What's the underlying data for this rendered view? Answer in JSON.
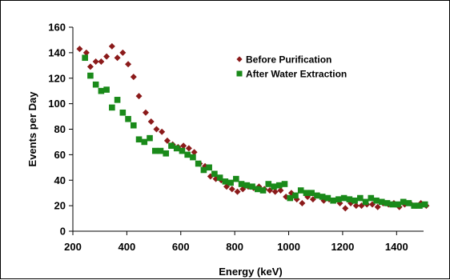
{
  "chart_data": {
    "type": "scatter",
    "title": "",
    "xlabel": "Energy (keV)",
    "ylabel": "Events per Day",
    "xlim": [
      200,
      1500
    ],
    "ylim": [
      0,
      160
    ],
    "x_ticks": [
      200,
      400,
      600,
      800,
      1000,
      1200,
      1400
    ],
    "y_ticks": [
      0,
      20,
      40,
      60,
      80,
      100,
      120,
      140,
      160
    ],
    "grid": false,
    "legend_position": "top-right",
    "series": [
      {
        "name": "Before Purification",
        "color": "#8B1A1A",
        "marker": "diamond",
        "points": [
          [
            225,
            143
          ],
          [
            250,
            140
          ],
          [
            265,
            129
          ],
          [
            285,
            133
          ],
          [
            305,
            133
          ],
          [
            325,
            137
          ],
          [
            345,
            145
          ],
          [
            365,
            136
          ],
          [
            385,
            140
          ],
          [
            405,
            131
          ],
          [
            425,
            121
          ],
          [
            445,
            106
          ],
          [
            470,
            93
          ],
          [
            490,
            86
          ],
          [
            510,
            80
          ],
          [
            530,
            78
          ],
          [
            550,
            71
          ],
          [
            570,
            68
          ],
          [
            590,
            66
          ],
          [
            610,
            67
          ],
          [
            630,
            65
          ],
          [
            650,
            62
          ],
          [
            670,
            53
          ],
          [
            690,
            51
          ],
          [
            710,
            43
          ],
          [
            730,
            41
          ],
          [
            750,
            40
          ],
          [
            770,
            35
          ],
          [
            790,
            33
          ],
          [
            810,
            31
          ],
          [
            830,
            33
          ],
          [
            850,
            35
          ],
          [
            870,
            34
          ],
          [
            890,
            35
          ],
          [
            910,
            33
          ],
          [
            930,
            32
          ],
          [
            950,
            31
          ],
          [
            970,
            32
          ],
          [
            990,
            27
          ],
          [
            1010,
            30
          ],
          [
            1030,
            25
          ],
          [
            1050,
            22
          ],
          [
            1070,
            27
          ],
          [
            1090,
            25
          ],
          [
            1110,
            28
          ],
          [
            1130,
            24
          ],
          [
            1150,
            25
          ],
          [
            1170,
            24
          ],
          [
            1190,
            22
          ],
          [
            1210,
            18
          ],
          [
            1230,
            22
          ],
          [
            1250,
            20
          ],
          [
            1270,
            20
          ],
          [
            1290,
            21
          ],
          [
            1310,
            21
          ],
          [
            1330,
            19
          ],
          [
            1350,
            22
          ],
          [
            1370,
            21
          ],
          [
            1390,
            22
          ],
          [
            1410,
            19
          ],
          [
            1430,
            21
          ],
          [
            1450,
            22
          ],
          [
            1470,
            20
          ],
          [
            1490,
            22
          ],
          [
            1510,
            20
          ]
        ]
      },
      {
        "name": "After Water Extraction",
        "color": "#1A8A1A",
        "marker": "square",
        "points": [
          [
            245,
            136
          ],
          [
            265,
            122
          ],
          [
            285,
            115
          ],
          [
            305,
            110
          ],
          [
            325,
            111
          ],
          [
            345,
            97
          ],
          [
            365,
            103
          ],
          [
            385,
            93
          ],
          [
            405,
            88
          ],
          [
            425,
            83
          ],
          [
            445,
            72
          ],
          [
            465,
            70
          ],
          [
            485,
            73
          ],
          [
            505,
            63
          ],
          [
            525,
            63
          ],
          [
            545,
            61
          ],
          [
            565,
            67
          ],
          [
            585,
            65
          ],
          [
            605,
            63
          ],
          [
            625,
            60
          ],
          [
            645,
            58
          ],
          [
            665,
            53
          ],
          [
            685,
            48
          ],
          [
            705,
            50
          ],
          [
            725,
            45
          ],
          [
            745,
            42
          ],
          [
            765,
            39
          ],
          [
            785,
            38
          ],
          [
            805,
            41
          ],
          [
            825,
            37
          ],
          [
            845,
            36
          ],
          [
            865,
            35
          ],
          [
            885,
            33
          ],
          [
            905,
            32
          ],
          [
            925,
            37
          ],
          [
            945,
            35
          ],
          [
            965,
            36
          ],
          [
            985,
            37
          ],
          [
            1005,
            26
          ],
          [
            1025,
            28
          ],
          [
            1045,
            32
          ],
          [
            1065,
            30
          ],
          [
            1085,
            30
          ],
          [
            1105,
            28
          ],
          [
            1125,
            27
          ],
          [
            1145,
            26
          ],
          [
            1165,
            24
          ],
          [
            1185,
            25
          ],
          [
            1205,
            26
          ],
          [
            1225,
            25
          ],
          [
            1245,
            24
          ],
          [
            1265,
            26
          ],
          [
            1285,
            23
          ],
          [
            1305,
            26
          ],
          [
            1325,
            24
          ],
          [
            1345,
            23
          ],
          [
            1365,
            22
          ],
          [
            1385,
            21
          ],
          [
            1405,
            21
          ],
          [
            1425,
            23
          ],
          [
            1445,
            22
          ],
          [
            1465,
            20
          ],
          [
            1485,
            20
          ],
          [
            1505,
            21
          ]
        ]
      }
    ]
  }
}
